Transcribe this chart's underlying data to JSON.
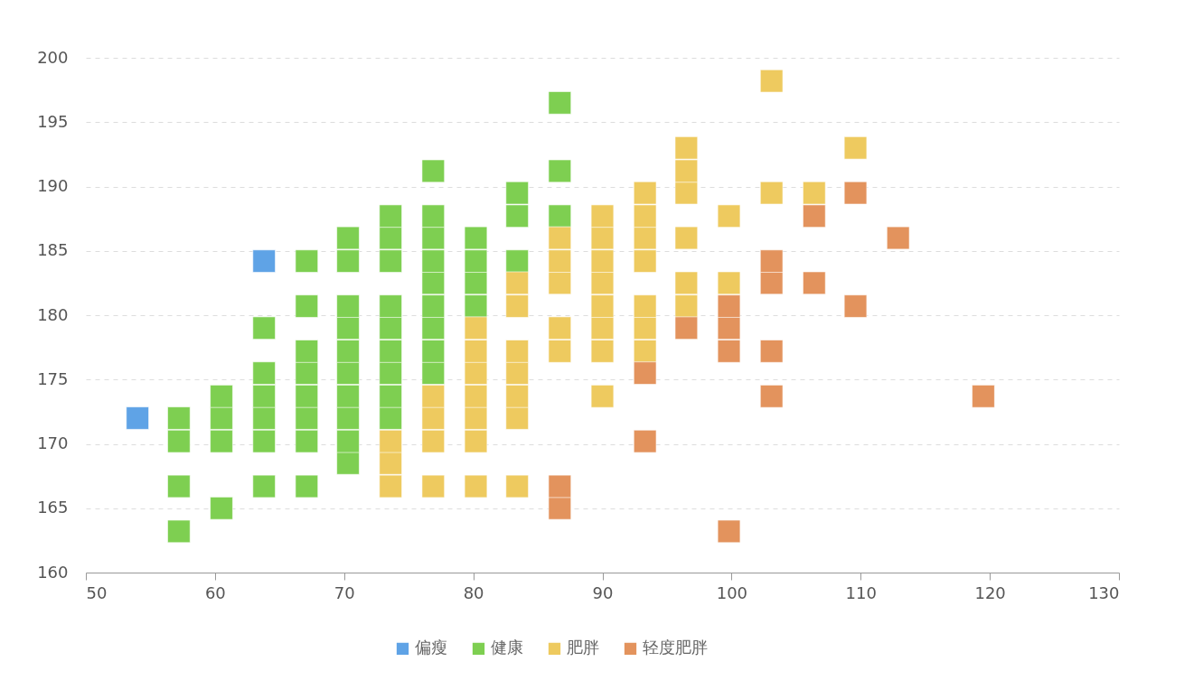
{
  "chart_data": {
    "type": "scatter",
    "marker": "square",
    "legend": "bottom",
    "grid": "y",
    "xlim": [
      50,
      130
    ],
    "xticks": [
      50,
      60,
      70,
      80,
      90,
      100,
      110,
      120,
      130
    ],
    "ylim": [
      160,
      200
    ],
    "yticks": [
      160,
      165,
      170,
      175,
      180,
      185,
      190,
      195,
      200
    ],
    "series": [
      {
        "name": "偏瘦",
        "color": "#5fa3e6",
        "x": [
          54.0,
          63.8
        ],
        "values": [
          172.0,
          184.2
        ]
      },
      {
        "name": "健康",
        "color": "#7ecf51",
        "x": [
          57.2,
          60.5,
          57.2,
          63.8,
          67.1,
          70.3,
          57.2,
          60.5,
          63.8,
          67.1,
          70.3,
          57.2,
          60.5,
          63.8,
          67.1,
          70.3,
          73.6,
          60.5,
          63.8,
          67.1,
          70.3,
          73.6,
          63.8,
          67.1,
          70.3,
          73.6,
          76.9,
          67.1,
          70.3,
          73.6,
          76.9,
          63.8,
          70.3,
          73.6,
          76.9,
          67.1,
          70.3,
          73.6,
          76.9,
          80.2,
          76.9,
          80.2,
          67.1,
          70.3,
          73.6,
          76.9,
          80.2,
          83.4,
          70.3,
          73.6,
          76.9,
          80.2,
          73.6,
          76.9,
          83.4,
          86.7,
          83.4,
          76.9,
          86.7,
          86.7
        ],
        "values": [
          163.2,
          165.0,
          166.7,
          166.7,
          166.7,
          168.5,
          170.2,
          170.2,
          170.2,
          170.2,
          170.2,
          172.0,
          172.0,
          172.0,
          172.0,
          172.0,
          172.0,
          173.7,
          173.7,
          173.7,
          173.7,
          173.7,
          175.5,
          175.5,
          175.5,
          175.5,
          175.5,
          177.2,
          177.2,
          177.2,
          177.2,
          179.0,
          179.0,
          179.0,
          179.0,
          180.7,
          180.7,
          180.7,
          180.7,
          180.7,
          182.5,
          182.5,
          184.2,
          184.2,
          184.2,
          184.2,
          184.2,
          184.2,
          186.0,
          186.0,
          186.0,
          186.0,
          187.7,
          187.7,
          187.7,
          187.7,
          189.5,
          191.2,
          191.2,
          196.5
        ]
      },
      {
        "name": "肥胖",
        "color": "#eeca5f",
        "x": [
          73.6,
          76.9,
          80.2,
          83.4,
          73.6,
          73.6,
          76.9,
          80.2,
          76.9,
          80.2,
          83.4,
          76.9,
          80.2,
          83.4,
          90.0,
          80.2,
          83.4,
          80.2,
          83.4,
          86.7,
          90.0,
          93.3,
          80.2,
          86.7,
          90.0,
          93.3,
          83.4,
          90.0,
          93.3,
          96.5,
          83.4,
          86.7,
          90.0,
          96.5,
          99.8,
          86.7,
          90.0,
          93.3,
          86.7,
          90.0,
          93.3,
          96.5,
          90.0,
          93.3,
          99.8,
          93.3,
          96.5,
          103.1,
          106.4,
          96.5,
          96.5,
          109.6,
          103.1
        ],
        "values": [
          166.7,
          166.7,
          166.7,
          166.7,
          168.5,
          170.2,
          170.2,
          170.2,
          172.0,
          172.0,
          172.0,
          173.7,
          173.7,
          173.7,
          173.7,
          175.5,
          175.5,
          177.2,
          177.2,
          177.2,
          177.2,
          177.2,
          179.0,
          179.0,
          179.0,
          179.0,
          180.7,
          180.7,
          180.7,
          180.7,
          182.5,
          182.5,
          182.5,
          182.5,
          182.5,
          184.2,
          184.2,
          184.2,
          186.0,
          186.0,
          186.0,
          186.0,
          187.7,
          187.7,
          187.7,
          189.5,
          189.5,
          189.5,
          189.5,
          191.2,
          193.0,
          193.0,
          198.2
        ]
      },
      {
        "name": "轻度肥胖",
        "color": "#e3935d",
        "x": [
          99.8,
          86.7,
          86.7,
          93.3,
          103.1,
          119.5,
          93.3,
          99.8,
          103.1,
          96.5,
          99.8,
          99.8,
          109.6,
          103.1,
          106.4,
          103.1,
          112.9,
          106.4,
          109.6
        ],
        "values": [
          163.2,
          165.0,
          166.7,
          170.2,
          173.7,
          173.7,
          175.5,
          177.2,
          177.2,
          179.0,
          179.0,
          180.7,
          180.7,
          182.5,
          182.5,
          184.2,
          186.0,
          187.7,
          189.5
        ]
      }
    ]
  }
}
